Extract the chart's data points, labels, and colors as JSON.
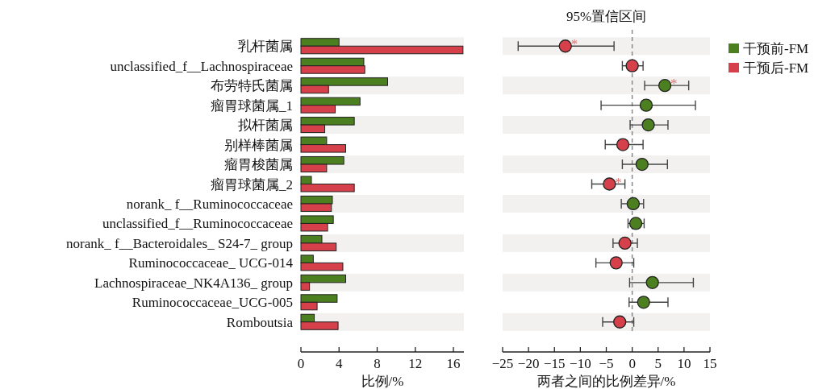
{
  "chart_data": [
    {
      "type": "bar",
      "orientation": "horizontal",
      "categories": [
        "乳杆菌属",
        "unclassified_f__Lachnospiraceae",
        "布劳特氏菌属",
        "瘤胃球菌属_1",
        "拟杆菌属",
        "别样棒菌属",
        "瘤胃梭菌属",
        "瘤胃球菌属_2",
        "norank_ f__Ruminococcaceae",
        "unclassified_f__Ruminococcaceae",
        "norank_ f__Bacteroidales_ S24-7_ group",
        "Ruminococcaceae_ UCG-014",
        "Lachnospiraceae_NK4A136_ group",
        "Ruminococcaceae_UCG-005",
        "Romboutsia"
      ],
      "series": [
        {
          "name": "干预前-FM",
          "color": "#4c7f1f",
          "values": [
            4.0,
            6.6,
            9.1,
            6.2,
            5.6,
            2.7,
            4.5,
            1.1,
            3.3,
            3.4,
            2.2,
            1.3,
            4.7,
            3.8,
            1.4
          ]
        },
        {
          "name": "干预后-FM",
          "color": "#d6404a",
          "values": [
            17.0,
            6.7,
            2.9,
            3.6,
            2.5,
            4.7,
            2.7,
            5.6,
            3.2,
            2.8,
            3.7,
            4.4,
            0.9,
            1.7,
            3.9
          ]
        }
      ],
      "xlim": [
        0,
        17.1
      ],
      "xticks": [
        0,
        4,
        8,
        12,
        16
      ],
      "xlabel": "比例/%",
      "legend": "right"
    },
    {
      "type": "scatter",
      "orientation": "horizontal",
      "title": "95%置信区间",
      "categories": [
        null,
        null,
        null,
        null,
        null,
        null,
        null,
        null,
        null,
        null,
        null,
        null,
        null,
        null,
        null
      ],
      "value_labels": [
        "*",
        null,
        "*",
        null,
        null,
        null,
        null,
        "*",
        null,
        null,
        null,
        null,
        null,
        null,
        null
      ],
      "values": [
        -12.9,
        0.0,
        6.3,
        2.7,
        3.1,
        -1.8,
        1.9,
        -4.4,
        0.2,
        0.7,
        -1.4,
        -3.1,
        3.9,
        2.2,
        -2.4
      ],
      "colors": [
        "#d6404a",
        "#d6404a",
        "#4c7f1f",
        "#4c7f1f",
        "#4c7f1f",
        "#d6404a",
        "#4c7f1f",
        "#d6404a",
        "#4c7f1f",
        "#4c7f1f",
        "#d6404a",
        "#d6404a",
        "#4c7f1f",
        "#4c7f1f",
        "#d6404a"
      ],
      "errors": [
        [
          -22.0,
          -3.5
        ],
        [
          -1.9,
          2.1
        ],
        [
          2.4,
          10.9
        ],
        [
          -6.0,
          12.2
        ],
        [
          -0.4,
          6.9
        ],
        [
          -5.2,
          2.1
        ],
        [
          -1.9,
          6.8
        ],
        [
          -7.8,
          -1.4
        ],
        [
          -2.1,
          2.2
        ],
        [
          -0.8,
          2.3
        ],
        [
          -3.7,
          1.0
        ],
        [
          -7.0,
          0.3
        ],
        [
          -0.5,
          11.8
        ],
        [
          -0.6,
          6.9
        ],
        [
          -5.7,
          0.3
        ]
      ],
      "xlim": [
        -25,
        15
      ],
      "xticks": [
        {
          "value": -25,
          "label": "−25"
        },
        {
          "value": -20,
          "label": "−20"
        },
        {
          "value": -15,
          "label": "−15"
        },
        {
          "value": -10,
          "label": "−10"
        },
        {
          "value": -5,
          "label": "−5"
        },
        0,
        5,
        10,
        15
      ],
      "xlabel": "两者之间的比例差异/%",
      "tick_labels": "x",
      "marker": "circle",
      "ref_lines": [
        {
          "axis": "x",
          "value": 0,
          "color": "#888888",
          "line_style": "dashed"
        }
      ]
    }
  ]
}
